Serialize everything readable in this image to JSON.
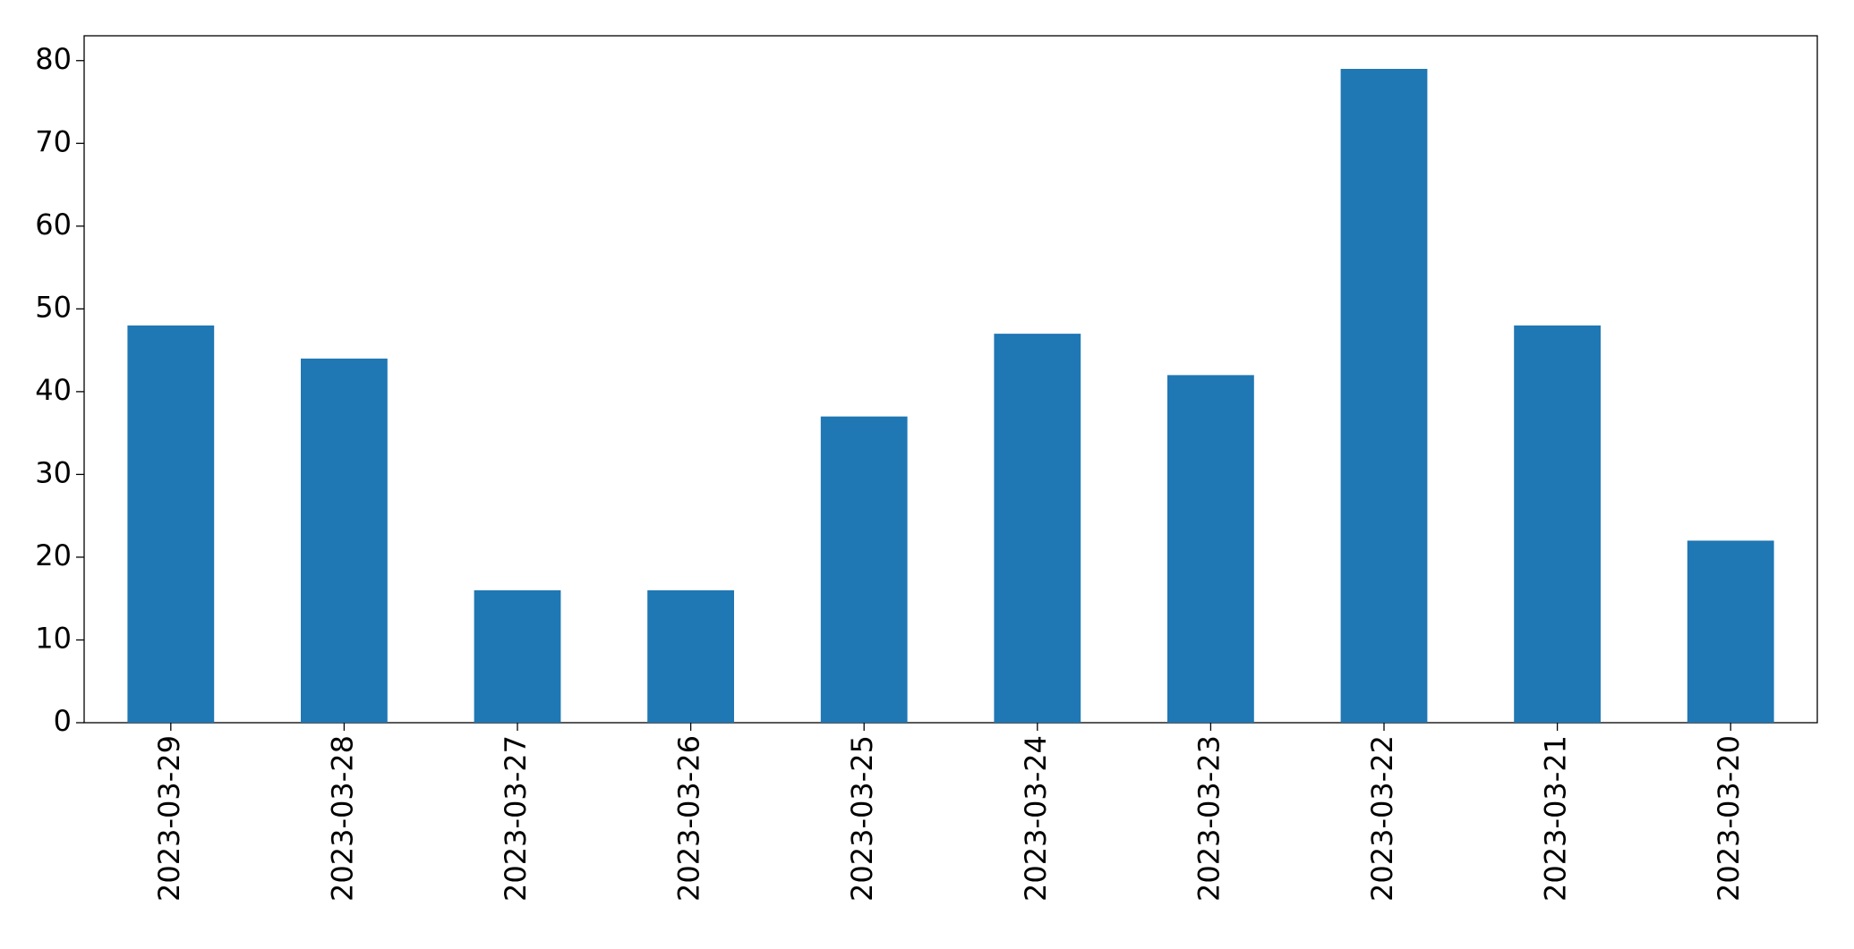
{
  "chart_data": {
    "type": "bar",
    "categories": [
      "2023-03-29",
      "2023-03-28",
      "2023-03-27",
      "2023-03-26",
      "2023-03-25",
      "2023-03-24",
      "2023-03-23",
      "2023-03-22",
      "2023-03-21",
      "2023-03-20"
    ],
    "values": [
      48,
      44,
      16,
      16,
      37,
      47,
      42,
      79,
      48,
      22
    ],
    "color": "#1f77b4",
    "ylim": [
      0,
      83
    ],
    "yticks": [
      0,
      10,
      20,
      30,
      40,
      50,
      60,
      70,
      80
    ],
    "grid": false
  }
}
